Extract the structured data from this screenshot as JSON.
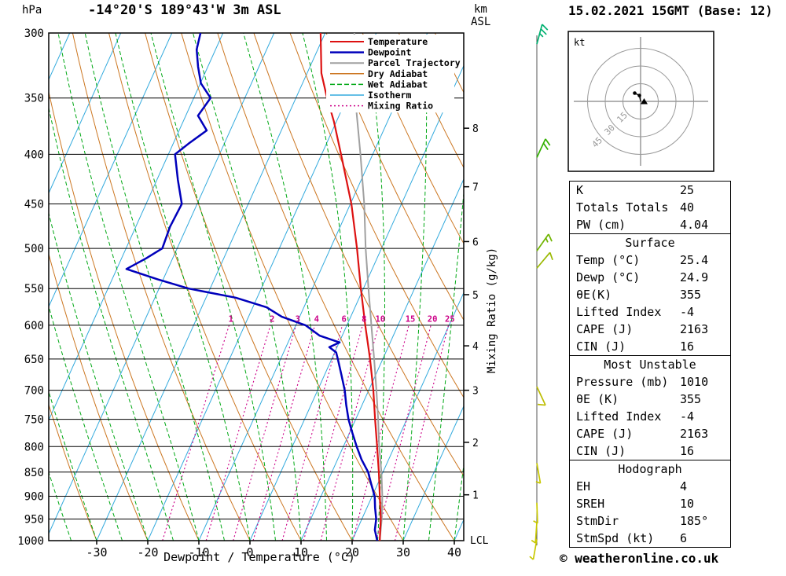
{
  "header": {
    "station": "-14°20'S 189°43'W 3m ASL",
    "datetime": "15.02.2021 15GMT (Base: 12)",
    "pressure_unit": "hPa",
    "km_label": "km",
    "asl_label": "ASL",
    "copyright": "© weatheronline.co.uk"
  },
  "axes": {
    "xlabel": "Dewpoint / Temperature (°C)",
    "right_label": "Mixing Ratio (g/kg)",
    "lcl_label": "LCL",
    "pressure_ticks": [
      300,
      350,
      400,
      450,
      500,
      550,
      600,
      650,
      700,
      750,
      800,
      850,
      900,
      950,
      1000
    ],
    "temp_ticks": [
      -30,
      -20,
      -10,
      0,
      10,
      20,
      30,
      40
    ],
    "km_ticks_unit": "km ASL"
  },
  "legend": [
    {
      "label": "Temperature",
      "color": "#dd1111",
      "style": "solid",
      "weight": 2
    },
    {
      "label": "Dewpoint",
      "color": "#0000bb",
      "style": "solid",
      "weight": 2.5
    },
    {
      "label": "Parcel Trajectory",
      "color": "#a0a0a0",
      "style": "solid",
      "weight": 2
    },
    {
      "label": "Dry Adiabat",
      "color": "#cc7722",
      "style": "solid",
      "weight": 1.5
    },
    {
      "label": "Wet Adiabat",
      "color": "#00a814",
      "style": "dashed",
      "weight": 1.5
    },
    {
      "label": "Isotherm",
      "color": "#33aadd",
      "style": "solid",
      "weight": 1.5
    },
    {
      "label": "Mixing Ratio",
      "color": "#cc0088",
      "style": "dotted",
      "weight": 1.5
    }
  ],
  "chart_data": {
    "type": "skewt-log-p",
    "pressure_range": [
      300,
      1000
    ],
    "temp_axis_range": [
      -40,
      45
    ],
    "grid": "on",
    "colors": {
      "temperature": "#dd1111",
      "dewpoint": "#0000bb",
      "parcel": "#a0a0a0",
      "dry_adiabat": "#cc7722",
      "wet_adiabat": "#00a814",
      "isotherm": "#33aadd",
      "mixing_ratio": "#cc0088",
      "grid": "#000000"
    },
    "mixing_ratio_lines": [
      1,
      2,
      3,
      4,
      6,
      8,
      10,
      15,
      20,
      25
    ],
    "mixing_label_pressure": 592,
    "temperature_profile": {
      "pressure": [
        1000,
        950,
        900,
        850,
        800,
        750,
        700,
        650,
        600,
        550,
        500,
        450,
        400,
        370,
        350,
        330,
        300
      ],
      "values": [
        25.4,
        23.7,
        21.5,
        19.2,
        16.6,
        13.8,
        10.9,
        7.5,
        3.6,
        -0.5,
        -4.8,
        -9.8,
        -16.2,
        -20.5,
        -23.9,
        -27.2,
        -30.9
      ]
    },
    "dewpoint_profile": {
      "pressure": [
        1000,
        975,
        950,
        925,
        900,
        875,
        850,
        825,
        800,
        775,
        750,
        725,
        700,
        675,
        650,
        640,
        632,
        625,
        615,
        600,
        588,
        575,
        562,
        550,
        538,
        525,
        512,
        500,
        475,
        450,
        425,
        400,
        390,
        378,
        365,
        350,
        338,
        325,
        312,
        300
      ],
      "values": [
        24.9,
        23.5,
        22.8,
        21.6,
        20.5,
        18.8,
        17.1,
        14.7,
        12.6,
        10.6,
        8.6,
        6.9,
        5.3,
        3.3,
        1.2,
        0.3,
        -1.5,
        0.1,
        -4.4,
        -8.1,
        -13.5,
        -17.3,
        -24.2,
        -34.2,
        -41.1,
        -48.1,
        -45.2,
        -42.9,
        -43.3,
        -43.0,
        -45.9,
        -48.7,
        -47.0,
        -44.6,
        -47.6,
        -46.7,
        -49.9,
        -51.9,
        -53.7,
        -54.4
      ]
    },
    "parcel_profile": {
      "pressure": [
        1000,
        950,
        900,
        850,
        800,
        750,
        700,
        650,
        600,
        550,
        500,
        450,
        400,
        350,
        300
      ],
      "values": [
        25.4,
        23.9,
        22.0,
        19.7,
        17.0,
        14.4,
        11.5,
        8.3,
        4.8,
        1.0,
        -3.1,
        -7.3,
        -12.4,
        -18.4,
        -24.3
      ]
    },
    "km_ticks": [
      {
        "km": 1,
        "p": 897
      },
      {
        "km": 2,
        "p": 792
      },
      {
        "km": 3,
        "p": 700
      },
      {
        "km": 4,
        "p": 630
      },
      {
        "km": 5,
        "p": 558
      },
      {
        "km": 6,
        "p": 492
      },
      {
        "km": 7,
        "p": 432
      },
      {
        "km": 8,
        "p": 376
      }
    ],
    "lcl_pressure": 1000,
    "wind_barbs": [
      {
        "p": 308,
        "spd": 25,
        "ang": 15,
        "color": "#00b070"
      },
      {
        "p": 403,
        "spd": 20,
        "ang": 25,
        "color": "#33b000"
      },
      {
        "p": 503,
        "spd": 15,
        "ang": 35,
        "color": "#70b400"
      },
      {
        "p": 524,
        "spd": 10,
        "ang": 40,
        "color": "#9ab800"
      },
      {
        "p": 694,
        "spd": 10,
        "ang": 155,
        "color": "#bcbc00"
      },
      {
        "p": 832,
        "spd": 5,
        "ang": 170,
        "color": "#c8c800"
      },
      {
        "p": 914,
        "spd": 5,
        "ang": 178,
        "color": "#c8c800"
      },
      {
        "p": 958,
        "spd": 5,
        "ang": 184,
        "color": "#c8c800"
      },
      {
        "p": 997,
        "spd": 5,
        "ang": 190,
        "color": "#c8c800"
      }
    ],
    "hodograph": {
      "unit": "kt",
      "rings": [
        15,
        30,
        45
      ],
      "trace": [
        [
          0,
          0
        ],
        [
          -1,
          -5
        ],
        [
          -5,
          -7
        ]
      ],
      "dots": [
        [
          -1,
          -5
        ],
        [
          -5,
          -7
        ]
      ],
      "triangle": [
        3,
        0
      ]
    }
  },
  "panel": {
    "sections": [
      {
        "rows": [
          {
            "label": "K",
            "value": "25"
          },
          {
            "label": "Totals Totals",
            "value": "40"
          },
          {
            "label": "PW (cm)",
            "value": "4.04"
          }
        ]
      },
      {
        "title": "Surface",
        "rows": [
          {
            "label": "Temp (°C)",
            "value": "25.4"
          },
          {
            "label": "Dewp (°C)",
            "value": "24.9"
          },
          {
            "label": "θE(K)",
            "value": "355"
          },
          {
            "label": "Lifted Index",
            "value": "-4"
          },
          {
            "label": "CAPE (J)",
            "value": "2163"
          },
          {
            "label": "CIN (J)",
            "value": "16"
          }
        ]
      },
      {
        "title": "Most Unstable",
        "rows": [
          {
            "label": "Pressure (mb)",
            "value": "1010"
          },
          {
            "label": "θE (K)",
            "value": "355"
          },
          {
            "label": "Lifted Index",
            "value": "-4"
          },
          {
            "label": "CAPE (J)",
            "value": "2163"
          },
          {
            "label": "CIN (J)",
            "value": "16"
          }
        ]
      },
      {
        "title": "Hodograph",
        "rows": [
          {
            "label": "EH",
            "value": "4"
          },
          {
            "label": "SREH",
            "value": "10"
          },
          {
            "label": "StmDir",
            "value": "185°"
          },
          {
            "label": "StmSpd (kt)",
            "value": "6"
          }
        ]
      }
    ]
  }
}
